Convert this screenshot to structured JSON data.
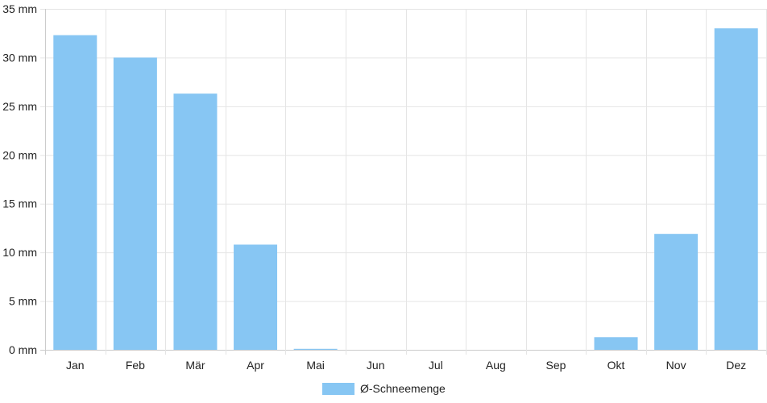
{
  "chart_data": {
    "type": "bar",
    "categories": [
      "Jan",
      "Feb",
      "Mär",
      "Apr",
      "Mai",
      "Jun",
      "Jul",
      "Aug",
      "Sep",
      "Okt",
      "Nov",
      "Dez"
    ],
    "series": [
      {
        "name": "Ø-Schneemenge",
        "values": [
          32.3,
          30.0,
          26.3,
          10.8,
          0.1,
          0,
          0,
          0,
          0,
          1.3,
          11.9,
          33.0
        ],
        "color": "#87c6f3"
      }
    ],
    "y_ticks": [
      "0 mm",
      "5 mm",
      "10 mm",
      "15 mm",
      "20 mm",
      "25 mm",
      "30 mm",
      "35 mm"
    ],
    "ylim": [
      0,
      35
    ],
    "y_step": 5,
    "grid": true,
    "legend_position": "bottom-center",
    "grid_color": "#e5e5e5",
    "axis_color": "#cccccc"
  }
}
